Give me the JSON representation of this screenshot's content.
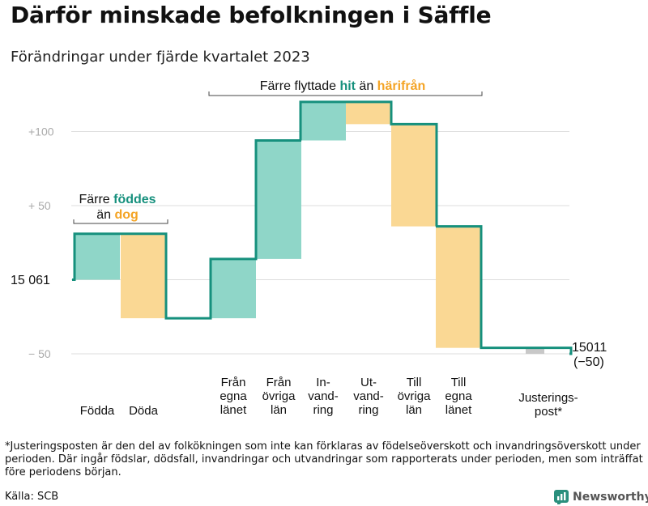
{
  "title": "Därför minskade befolkningen i Säffle",
  "subtitle": "Förändringar under fjärde kvartalet 2023",
  "colors": {
    "in": "#8fd6c8",
    "out": "#fad894",
    "line": "#16907d",
    "accent_in": "#16907d",
    "accent_out": "#f4a425",
    "adjust": "#c8c8c8",
    "grid": "#dddddd",
    "axis_text": "#aaaaaa"
  },
  "chart_data": {
    "type": "waterfall",
    "start_value": 15061,
    "start_label": "15  061",
    "end_value": 15011,
    "end_label": "15 011",
    "end_change_label": "(−50)",
    "y_ticks": [
      {
        "value": 100,
        "label": "+100"
      },
      {
        "value": 50,
        "label": "+  50"
      },
      {
        "value": -50,
        "label": "−  50"
      }
    ],
    "ylim": [
      -55,
      120
    ],
    "steps": [
      {
        "label_lines": [
          "Födda"
        ],
        "change": 31,
        "kind": "in"
      },
      {
        "label_lines": [
          "Döda"
        ],
        "change": -57,
        "kind": "out"
      },
      {
        "label_lines": [
          "Från",
          "egna",
          "länet"
        ],
        "change": 40,
        "kind": "in"
      },
      {
        "label_lines": [
          "Från",
          "övriga",
          "län"
        ],
        "change": 80,
        "kind": "in"
      },
      {
        "label_lines": [
          "In-",
          "vand-",
          "ring"
        ],
        "change": 26,
        "kind": "in"
      },
      {
        "label_lines": [
          "Ut-",
          "vand-",
          "ring"
        ],
        "change": -15,
        "kind": "out"
      },
      {
        "label_lines": [
          "Till",
          "övriga",
          "län"
        ],
        "change": -69,
        "kind": "out"
      },
      {
        "label_lines": [
          "Till",
          "egna",
          "länet"
        ],
        "change": -82,
        "kind": "out"
      },
      {
        "label_lines": [
          "Justerings-",
          "post*"
        ],
        "change": -4,
        "kind": "adjust"
      }
    ]
  },
  "annotations": {
    "births": {
      "line1_a": "Färre ",
      "line1_b": "föddes",
      "line2_a": "än ",
      "line2_b": "dog"
    },
    "moves": {
      "part_a": "Färre flyttade ",
      "part_b": "hit",
      "part_c": " än ",
      "part_d": "härifrån"
    }
  },
  "footnote": "*Justeringsposten är den del av folkökningen som inte kan förklaras av födelseöverskott och invandringsöverskott under perioden. Där ingår födslar, dödsfall, invandringar och utvandringar som rapporterats under perioden, men som inträffat före periodens början.",
  "source": "Källa: SCB",
  "brand": "Newsworthy",
  "brand_icon": "bar-chart-icon"
}
